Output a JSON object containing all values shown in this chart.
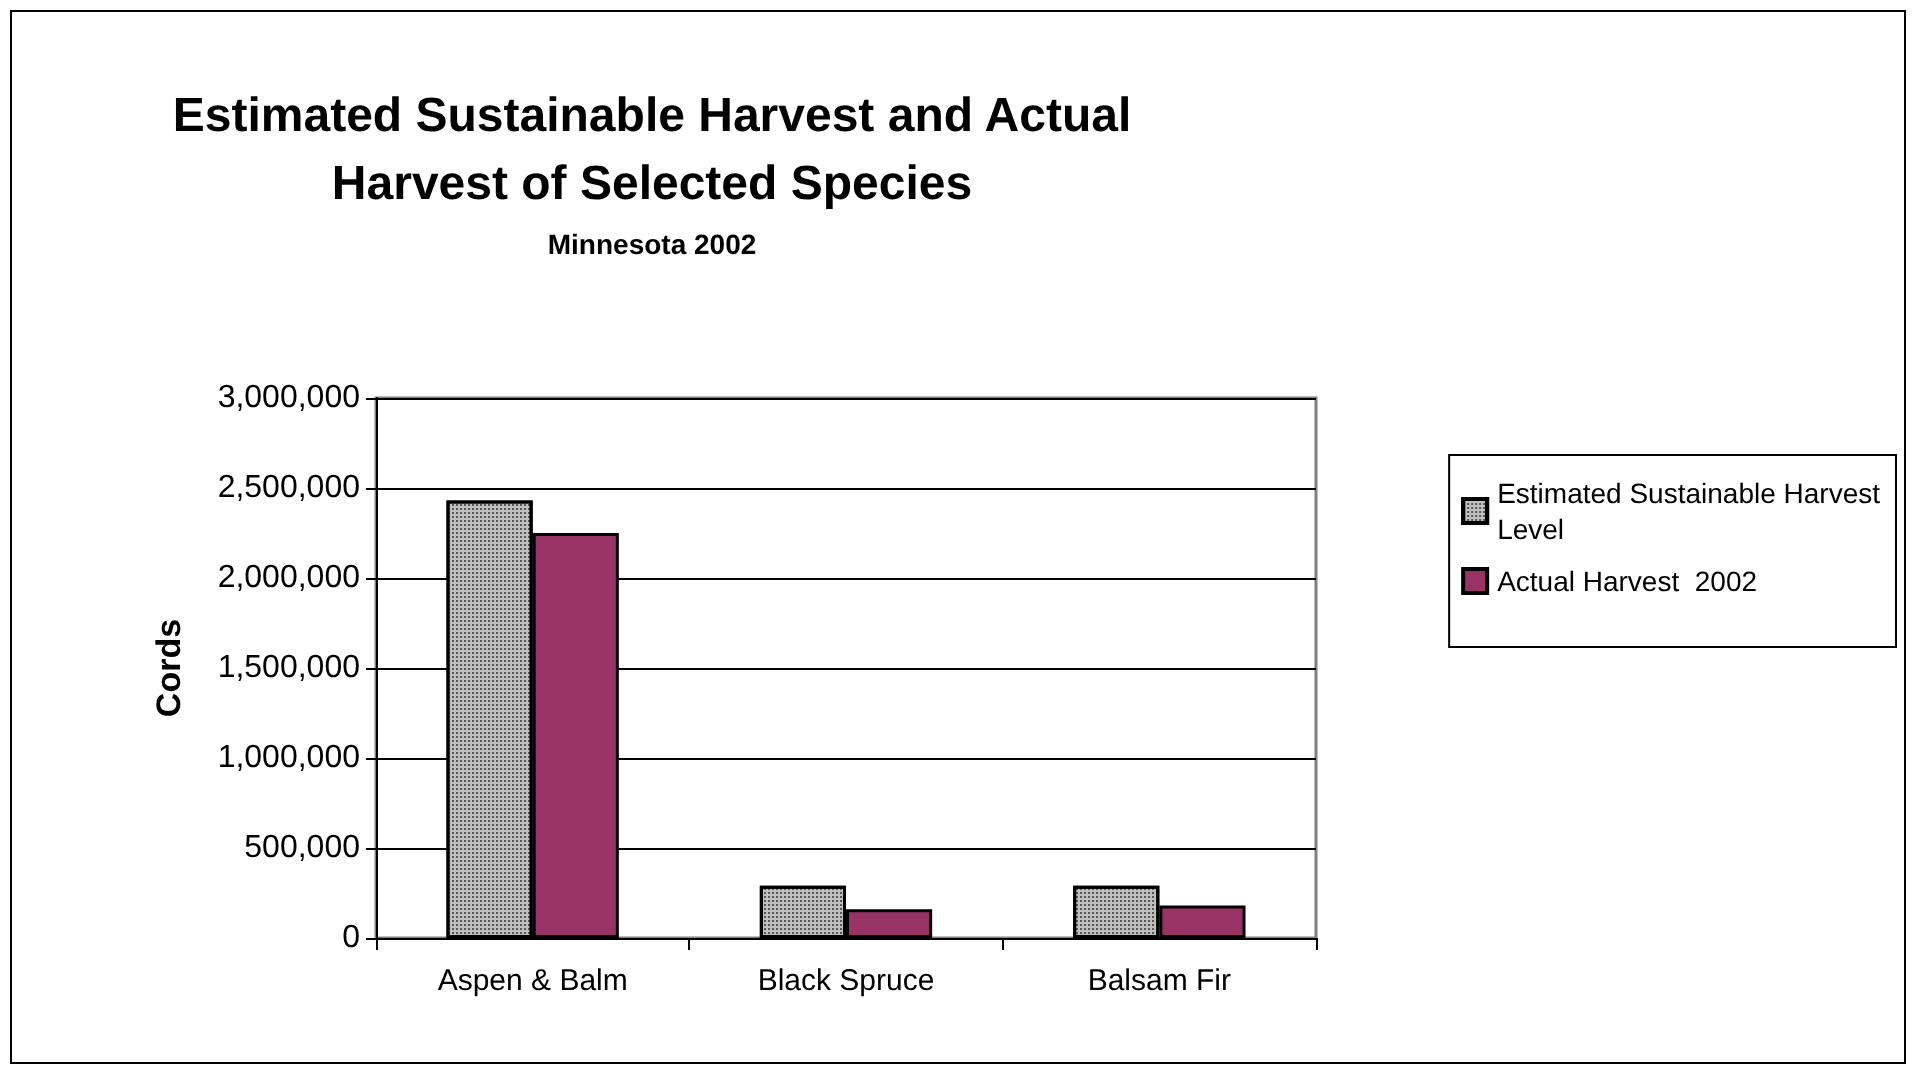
{
  "chart_data": {
    "type": "bar",
    "title": "Estimated Sustainable Harvest and Actual\nHarvest of Selected Species",
    "subtitle": "Minnesota 2002",
    "ylabel": "Cords",
    "categories": [
      "Aspen & Balm",
      "Black Spruce",
      "Balsam Fir"
    ],
    "series": [
      {
        "name": "Estimated Sustainable Harvest\nLevel",
        "color": "#c0c0c0",
        "values": [
          2430000,
          290000,
          290000
        ]
      },
      {
        "name": "Actual Harvest  2002",
        "color": "#993366",
        "values": [
          2250000,
          160000,
          180000
        ]
      }
    ],
    "ylim": [
      0,
      3000000
    ],
    "yticks": [
      0,
      {
        "value": 500000,
        "label": "500,000"
      },
      {
        "value": 1000000,
        "label": "1,000,000"
      },
      {
        "value": 1500000,
        "label": "1,500,000"
      },
      {
        "value": 2000000,
        "label": "2,000,000"
      },
      {
        "value": 2500000,
        "label": "2,500,000"
      },
      {
        "value": 3000000,
        "label": "3,000,000"
      }
    ],
    "grid": "y",
    "legend": "right"
  }
}
